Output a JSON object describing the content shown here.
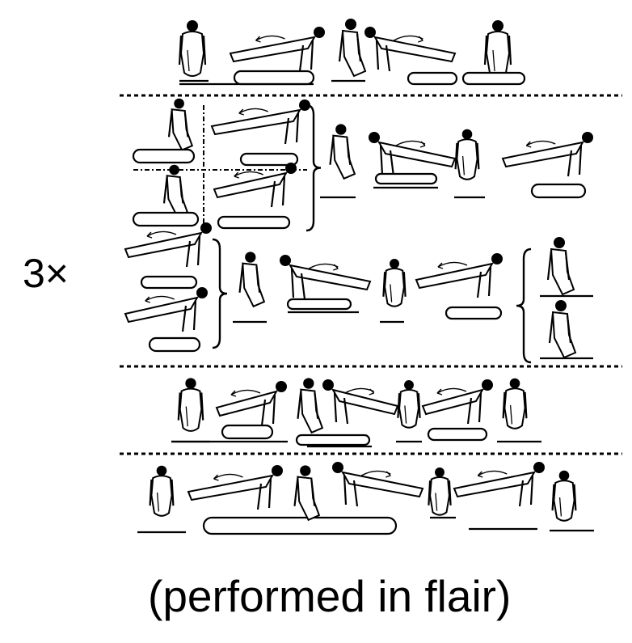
{
  "figure": {
    "repetition_label": "3×",
    "caption": "(performed in flair)",
    "ink_color": "#000000",
    "background_color": "#ffffff",
    "separator_style": "dotted",
    "rows": [
      {
        "id": "row-1",
        "figures": [
          "front-support",
          "side-flair",
          "rear-support",
          "side-flair",
          "front-support"
        ]
      },
      {
        "id": "row-2",
        "figures": [
          "support-stack",
          "flair-stack",
          "front-support",
          "side-flair",
          "rear-support",
          "side-flair"
        ]
      },
      {
        "id": "row-3",
        "figures": [
          "flair-stack",
          "rear-support",
          "side-flair",
          "front-support",
          "side-flair",
          "support-stack"
        ]
      },
      {
        "id": "row-4",
        "figures": [
          "front-support",
          "side-flair",
          "rear-support",
          "side-flair",
          "front-support",
          "side-flair",
          "rear-support"
        ]
      },
      {
        "id": "row-5",
        "figures": [
          "front-support",
          "side-flair",
          "rear-support",
          "side-flair",
          "front-support",
          "side-flair",
          "rear-support"
        ]
      }
    ]
  }
}
